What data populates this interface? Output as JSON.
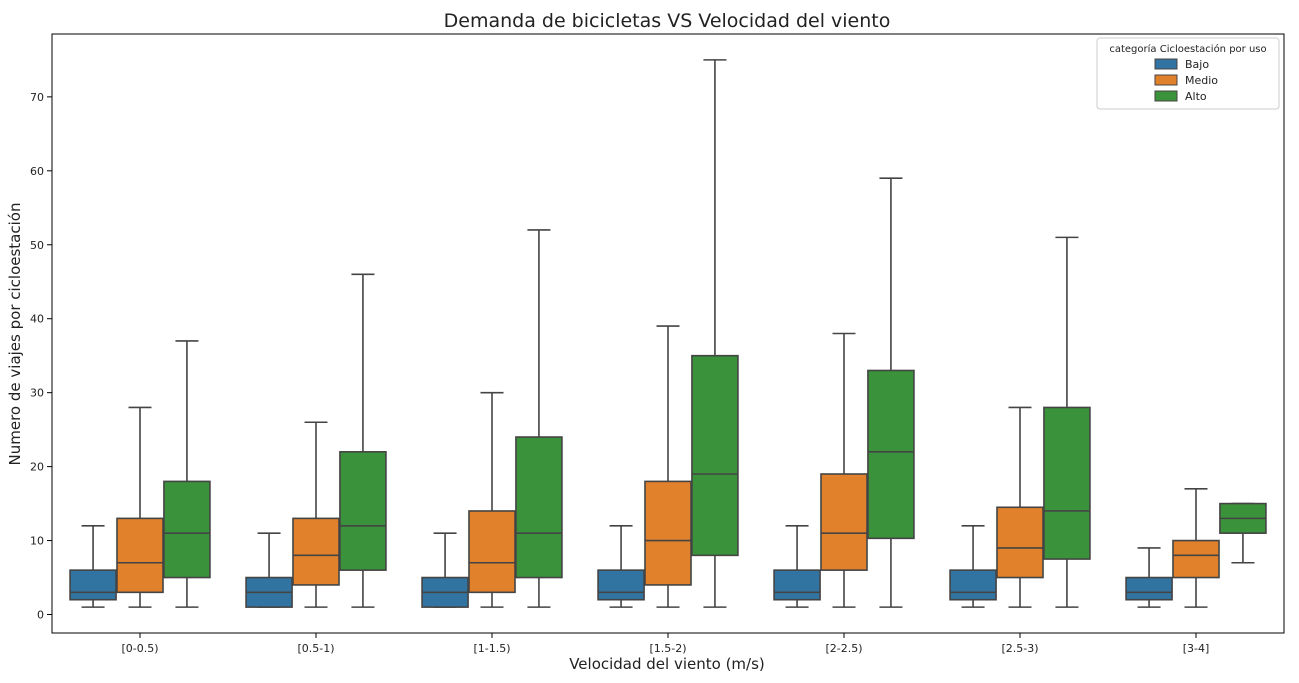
{
  "chart_data": {
    "type": "boxplot",
    "title": "Demanda de bicicletas VS Velocidad del viento",
    "xlabel": "Velocidad del viento (m/s)",
    "ylabel": "Numero de viajes por cicloestación",
    "ylim": [
      -2.5,
      78.5
    ],
    "yticks": [
      0,
      10,
      20,
      30,
      40,
      50,
      60,
      70
    ],
    "categories": [
      "[0-0.5)",
      "[0.5-1)",
      "[1-1.5)",
      "[1.5-2)",
      "[2-2.5)",
      "[2.5-3)",
      "[3-4]"
    ],
    "legend": {
      "title": "categoría Cicloestación por uso",
      "position": "top-right"
    },
    "series": [
      {
        "name": "Bajo",
        "color": "#3274a1",
        "boxes": [
          {
            "min": 1,
            "q1": 2,
            "median": 3,
            "q3": 6,
            "max": 12
          },
          {
            "min": 1,
            "q1": 1,
            "median": 3,
            "q3": 5,
            "max": 11
          },
          {
            "min": 1,
            "q1": 1,
            "median": 3,
            "q3": 5,
            "max": 11
          },
          {
            "min": 1,
            "q1": 2,
            "median": 3,
            "q3": 6,
            "max": 12
          },
          {
            "min": 1,
            "q1": 2,
            "median": 3,
            "q3": 6,
            "max": 12
          },
          {
            "min": 1,
            "q1": 2,
            "median": 3,
            "q3": 6,
            "max": 12
          },
          {
            "min": 1,
            "q1": 2,
            "median": 3,
            "q3": 5,
            "max": 9
          }
        ]
      },
      {
        "name": "Medio",
        "color": "#e1812c",
        "boxes": [
          {
            "min": 1,
            "q1": 3,
            "median": 7,
            "q3": 13,
            "max": 28
          },
          {
            "min": 1,
            "q1": 4,
            "median": 8,
            "q3": 13,
            "max": 26
          },
          {
            "min": 1,
            "q1": 3,
            "median": 7,
            "q3": 14,
            "max": 30
          },
          {
            "min": 1,
            "q1": 4,
            "median": 10,
            "q3": 18,
            "max": 39
          },
          {
            "min": 1,
            "q1": 6,
            "median": 11,
            "q3": 19,
            "max": 38
          },
          {
            "min": 1,
            "q1": 5,
            "median": 9,
            "q3": 14.5,
            "max": 28
          },
          {
            "min": 1,
            "q1": 5,
            "median": 8,
            "q3": 10,
            "max": 17
          }
        ]
      },
      {
        "name": "Alto",
        "color": "#3a923a",
        "boxes": [
          {
            "min": 1,
            "q1": 5,
            "median": 11,
            "q3": 18,
            "max": 37
          },
          {
            "min": 1,
            "q1": 6,
            "median": 12,
            "q3": 22,
            "max": 46
          },
          {
            "min": 1,
            "q1": 5,
            "median": 11,
            "q3": 24,
            "max": 52
          },
          {
            "min": 1,
            "q1": 8,
            "median": 19,
            "q3": 35,
            "max": 75
          },
          {
            "min": 1,
            "q1": 10.3,
            "median": 22,
            "q3": 33,
            "max": 59
          },
          {
            "min": 1,
            "q1": 7.5,
            "median": 14,
            "q3": 28,
            "max": 51
          },
          {
            "min": 7,
            "q1": 11,
            "median": 13,
            "q3": 15,
            "max": 15
          }
        ]
      }
    ]
  }
}
